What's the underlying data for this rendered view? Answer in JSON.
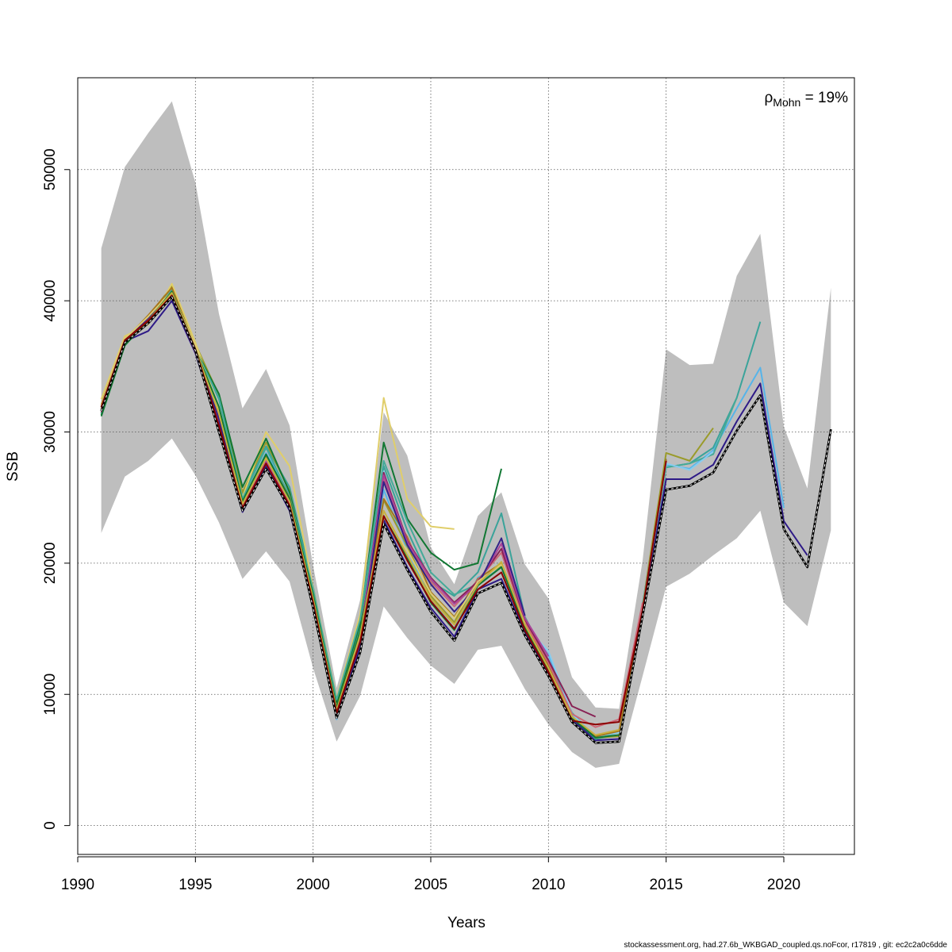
{
  "chart_data": {
    "type": "line",
    "xlabel": "Years",
    "ylabel": "SSB",
    "xlim": [
      1990,
      2023
    ],
    "ylim": [
      -2200,
      57000
    ],
    "xticks": [
      1990,
      1995,
      2000,
      2005,
      2010,
      2015,
      2020
    ],
    "yticks": [
      0,
      10000,
      20000,
      30000,
      40000,
      50000
    ],
    "grid": true,
    "annotation": {
      "symbol": "ρ",
      "subscript": "Mohn",
      "text": " = 19%"
    },
    "confidence_band": {
      "x": [
        1991,
        1992,
        1993,
        1994,
        1995,
        1996,
        1997,
        1998,
        1999,
        2000,
        2001,
        2002,
        2003,
        2004,
        2005,
        2006,
        2007,
        2008,
        2009,
        2010,
        2011,
        2012,
        2013,
        2014,
        2015,
        2016,
        2017,
        2018,
        2019,
        2020,
        2021,
        2022
      ],
      "upper": [
        44000,
        50200,
        52800,
        55200,
        49000,
        39000,
        31800,
        34800,
        30500,
        19800,
        10500,
        17200,
        31500,
        28200,
        21200,
        18400,
        23600,
        25400,
        19900,
        17300,
        11300,
        9000,
        8900,
        20200,
        36300,
        35100,
        35200,
        41900,
        45100,
        30400,
        25700,
        41000
      ],
      "lower": [
        22300,
        26600,
        27800,
        29500,
        26700,
        23100,
        18800,
        20900,
        18600,
        12000,
        6400,
        9900,
        16700,
        14300,
        12200,
        10800,
        13400,
        13700,
        10400,
        7700,
        5600,
        4400,
        4700,
        11400,
        18200,
        19200,
        20600,
        21900,
        24000,
        17000,
        15200,
        22500
      ],
      "color": "#bebebe"
    },
    "series": [
      {
        "color": "#000000",
        "dashed": true,
        "start": 1991,
        "values": [
          31600,
          36800,
          38300,
          40300,
          36200,
          30000,
          24000,
          27200,
          24200,
          16600,
          8200,
          13200,
          23000,
          19500,
          16300,
          14100,
          17700,
          18500,
          14500,
          11400,
          7900,
          6300,
          6400,
          16000,
          25600,
          25900,
          26900,
          30100,
          32800,
          22600,
          19700,
          30200
        ]
      },
      {
        "color": "#2e1a87",
        "start": 1991,
        "values": [
          31800,
          36900,
          37700,
          40000,
          36000,
          30300,
          23900,
          27400,
          24000,
          16800,
          8400,
          13500,
          23300,
          19700,
          16600,
          14400,
          18000,
          18800,
          14700,
          11600,
          8100,
          6500,
          6600,
          16200,
          26400,
          26400,
          27500,
          30800,
          33700,
          23200,
          20600
        ]
      },
      {
        "color": "#56b4e9",
        "start": 1991,
        "values": [
          32000,
          37000,
          38600,
          40500,
          36100,
          31200,
          24600,
          28400,
          25200,
          17500,
          8100,
          14100,
          25600,
          21000,
          17200,
          15000,
          18900,
          19800,
          15600,
          13000,
          8400,
          6800,
          7200,
          16500,
          27500,
          27200,
          28600,
          31800,
          34900,
          24200
        ]
      },
      {
        "color": "#3aa39a",
        "start": 1991,
        "values": [
          31400,
          36700,
          38700,
          40800,
          36500,
          32500,
          25200,
          28900,
          25800,
          18200,
          9300,
          15200,
          27400,
          22500,
          18600,
          17500,
          19300,
          23800,
          15900,
          12400,
          8400,
          6600,
          6900,
          16700,
          27300,
          27600,
          28800,
          32600,
          38400
        ]
      },
      {
        "color": "#9a9b2b",
        "start": 1991,
        "values": [
          32100,
          37100,
          38800,
          41100,
          36700,
          32800,
          25400,
          29200,
          25500,
          17500,
          9100,
          14800,
          24800,
          21300,
          17500,
          15500,
          18800,
          19800,
          15200,
          12000,
          8300,
          6700,
          6800,
          16800,
          28400,
          27800,
          30300
        ]
      },
      {
        "color": "#e0ce6a",
        "start": 1991,
        "values": [
          32500,
          37300,
          38200,
          41300,
          36800,
          31800,
          25000,
          30000,
          27400,
          18100,
          9700,
          16100,
          32600,
          24900,
          22800,
          22600
        ]
      },
      {
        "color": "#117733",
        "start": 1991,
        "values": [
          31300,
          36600,
          38600,
          40700,
          36300,
          32900,
          25800,
          29500,
          25400,
          17800,
          9400,
          15400,
          29200,
          23400,
          20800,
          19500,
          20000,
          27200
        ]
      },
      {
        "color": "#44aa99",
        "start": 1991,
        "values": [
          31400,
          36700,
          38400,
          40600,
          36300,
          32600,
          24900,
          28800,
          25100,
          18000,
          9600,
          15700,
          27800,
          23200,
          19300,
          17600,
          18400,
          19700,
          15900,
          12500,
          8600,
          6700,
          7100,
          16900,
          27300,
          27600,
          28300,
          32600
        ]
      },
      {
        "color": "#88ccee",
        "start": 1991,
        "values": [
          31700,
          36900,
          38400,
          40400,
          36200,
          31300,
          24500,
          28100,
          24800,
          17400,
          8300,
          14300,
          27000,
          21500,
          18900,
          16800,
          18600,
          20100,
          15200,
          13300,
          8500,
          6800,
          7100,
          16700,
          27600,
          27100,
          28500
        ]
      },
      {
        "color": "#a6761d",
        "start": 1991,
        "values": [
          31900,
          37000,
          38900,
          41000,
          36400,
          31500,
          24600,
          28200,
          25000,
          17300,
          9000,
          14500,
          24900,
          22000,
          17800,
          15900,
          18800,
          20000,
          15300,
          12200,
          8300,
          6800,
          7200,
          16600,
          27900
        ]
      },
      {
        "color": "#cc6677",
        "start": 1991,
        "values": [
          31800,
          36900,
          38600,
          40600,
          36300,
          31100,
          24400,
          27900,
          24700,
          17300,
          8900,
          14400,
          26400,
          21800,
          18600,
          16700,
          18700,
          20800,
          15500,
          12400,
          8500,
          7500,
          8100,
          17000
        ]
      },
      {
        "color": "#882255",
        "start": 1991,
        "values": [
          31500,
          36800,
          38300,
          40300,
          36100,
          30600,
          24200,
          27700,
          24500,
          17100,
          8800,
          14300,
          26900,
          21700,
          18900,
          17000,
          18600,
          21100,
          15700,
          12600,
          9100,
          8300
        ]
      },
      {
        "color": "#aa4499",
        "start": 1991,
        "values": [
          31600,
          36900,
          38400,
          40500,
          36200,
          30900,
          24300,
          27800,
          24600,
          17200,
          8700,
          14200,
          26700,
          21600,
          18800,
          16900,
          18400,
          21500,
          15800,
          12900
        ]
      },
      {
        "color": "#332288",
        "start": 1991,
        "values": [
          31900,
          37000,
          38700,
          40600,
          36400,
          31000,
          24100,
          27300,
          24300,
          16900,
          8500,
          13800,
          26200,
          21400,
          18400,
          16300,
          18300,
          21900,
          16000
        ]
      },
      {
        "color": "#ddcc77",
        "start": 1991,
        "values": [
          32000,
          37100,
          38800,
          40700,
          36500,
          31700,
          24500,
          28000,
          24900,
          17400,
          8900,
          14600,
          23500,
          21000,
          17700,
          15800,
          18600,
          19900,
          15400
        ]
      },
      {
        "color": "#117733",
        "start": 1991,
        "values": [
          31200,
          36600,
          38500,
          40700,
          36300,
          31900,
          24700,
          28300,
          24900,
          17600,
          9000,
          14800,
          23600,
          20400,
          17000,
          14900,
          18300,
          19700,
          15100,
          11800,
          8200,
          6700,
          6900
        ]
      },
      {
        "color": "#c9b03f",
        "start": 1991,
        "values": [
          31700,
          36800,
          38500,
          40600,
          36300,
          31400,
          24500,
          28000,
          24700,
          17300,
          8800,
          14500,
          24000,
          20600,
          17300,
          15300,
          18400,
          20100,
          15300,
          12000,
          8300,
          6900,
          7300
        ]
      },
      {
        "color": "#8b0000",
        "start": 1991,
        "values": [
          31900,
          37000,
          38500,
          40400,
          36300,
          30500,
          24200,
          27600,
          24400,
          17000,
          8600,
          14000,
          23600,
          20200,
          17100,
          15000,
          18000,
          19300,
          14900,
          11700,
          8000,
          7700,
          7900,
          16400,
          27800
        ]
      }
    ]
  },
  "footer": "stockassessment.org, had.27.6b_WKBGAD_coupled.qs.noFcor, r17819 , git: ec2c2a0c6dde"
}
